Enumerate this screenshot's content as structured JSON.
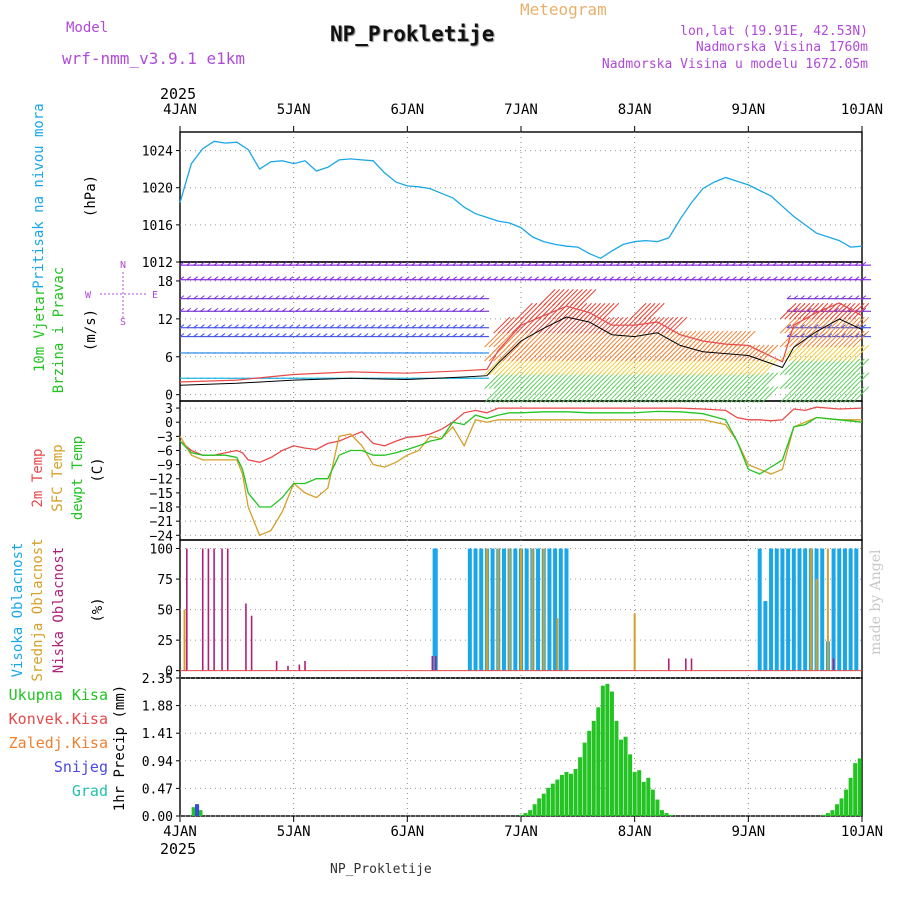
{
  "header": {
    "title": "NP_Prokletije",
    "subtitle": "Meteogram",
    "model_label": "Model",
    "model_name": "wrf-nmm_v3.9.1  e1km",
    "location": "lon,lat (19.91E, 42.53N)",
    "altitude": "Nadmorska Visina 1760m",
    "model_altitude": "Nadmorska Visina u modelu 1672.05m",
    "footer": "NP_Prokletije",
    "watermark": "made by Angel"
  },
  "colors": {
    "pressure": "#1aa7e8",
    "temp2m": "#e84a4a",
    "sfc_temp": "#d4a028",
    "dewpoint": "#22c322",
    "cloud_high": "#1aa7e8",
    "cloud_mid": "#d4a028",
    "cloud_low": "#b0207a",
    "precip_total": "#22c322",
    "purple_text": "#b04ad8",
    "wind_speed": "#000000",
    "gust": "#e84a4a"
  },
  "axis": {
    "year": "2025",
    "days": [
      "4JAN",
      "5JAN",
      "6JAN",
      "7JAN",
      "8JAN",
      "9JAN",
      "10JAN"
    ]
  },
  "chart_data": [
    {
      "type": "line",
      "panel": "pressure",
      "ylabel": "Pritisak na nivou mora",
      "unit": "(hPa)",
      "ylim": [
        1012,
        1026
      ],
      "yticks": [
        1012,
        1016,
        1020,
        1024
      ],
      "x": [
        0,
        0.1,
        0.2,
        0.3,
        0.4,
        0.5,
        0.6,
        0.7,
        0.8,
        0.9,
        1.0,
        1.1,
        1.2,
        1.3,
        1.4,
        1.5,
        1.6,
        1.7,
        1.8,
        1.9,
        2.0,
        2.1,
        2.2,
        2.3,
        2.4,
        2.5,
        2.6,
        2.7,
        2.8,
        2.9,
        3.0,
        3.1,
        3.2,
        3.3,
        3.4,
        3.5,
        3.6,
        3.7,
        3.8,
        3.9,
        4.0,
        4.1,
        4.2,
        4.3,
        4.4,
        4.5,
        4.6,
        4.7,
        4.8,
        4.9,
        5.0,
        5.1,
        5.2,
        5.3,
        5.4,
        5.5,
        5.6,
        5.7,
        5.8,
        5.9,
        6.0
      ],
      "series": [
        {
          "name": "pressure",
          "values": [
            1018.4,
            1022.6,
            1024.2,
            1025.0,
            1024.8,
            1024.9,
            1024.1,
            1022.0,
            1022.8,
            1022.9,
            1022.6,
            1022.9,
            1021.8,
            1022.2,
            1023.0,
            1023.1,
            1023.0,
            1022.9,
            1021.6,
            1020.6,
            1020.2,
            1020.1,
            1019.9,
            1019.4,
            1018.9,
            1017.9,
            1017.2,
            1016.8,
            1016.4,
            1016.2,
            1015.7,
            1014.7,
            1014.2,
            1013.9,
            1013.7,
            1013.6,
            1012.9,
            1012.4,
            1013.2,
            1013.9,
            1014.2,
            1014.3,
            1014.2,
            1014.6,
            1016.6,
            1018.4,
            1019.9,
            1020.6,
            1021.1,
            1020.7,
            1020.3,
            1019.7,
            1019.1,
            1018.0,
            1016.9,
            1016.0,
            1015.1,
            1014.7,
            1014.3,
            1013.6,
            1013.7
          ]
        }
      ]
    },
    {
      "type": "line",
      "panel": "wind",
      "ylabel": "10m Vjetar Brzina i Pravac",
      "unit": "(m/s)",
      "compass": [
        "N",
        "E",
        "S",
        "W"
      ],
      "ylim": [
        0,
        21
      ],
      "yticks": [
        0,
        6,
        12,
        18
      ],
      "x": [
        0,
        0.5,
        1.0,
        1.5,
        2.0,
        2.5,
        2.7,
        2.8,
        3.0,
        3.2,
        3.4,
        3.6,
        3.8,
        4.0,
        4.2,
        4.4,
        4.6,
        4.8,
        5.0,
        5.3,
        5.4,
        5.6,
        5.8,
        6.0
      ],
      "series": [
        {
          "name": "speed",
          "values": [
            1.5,
            1.8,
            2.3,
            2.6,
            2.4,
            2.8,
            3.0,
            5.0,
            8.5,
            10.5,
            12.3,
            11.5,
            9.5,
            9.2,
            9.8,
            7.8,
            6.8,
            6.5,
            6.2,
            4.3,
            7.5,
            10.0,
            12.0,
            10.3
          ]
        },
        {
          "name": "gust",
          "values": [
            2.0,
            2.3,
            3.2,
            3.6,
            3.4,
            3.8,
            4.0,
            7.0,
            11.0,
            12.5,
            14.0,
            13.0,
            11.0,
            11.0,
            11.5,
            9.5,
            8.5,
            8.0,
            7.8,
            5.2,
            11.0,
            13.0,
            14.5,
            12.5
          ]
        }
      ]
    },
    {
      "type": "line",
      "panel": "temperature",
      "ylabels": [
        "2m Temp",
        "SFC Temp",
        "dewpt Temp"
      ],
      "unit": "(C)",
      "ylim": [
        -25,
        4
      ],
      "yticks": [
        3,
        0,
        -3,
        -6,
        -9,
        -12,
        -15,
        -18,
        -21,
        -24
      ],
      "x": [
        0,
        0.1,
        0.2,
        0.3,
        0.4,
        0.5,
        0.55,
        0.6,
        0.7,
        0.8,
        0.9,
        1.0,
        1.1,
        1.2,
        1.3,
        1.4,
        1.5,
        1.6,
        1.7,
        1.8,
        1.9,
        2.0,
        2.1,
        2.2,
        2.3,
        2.4,
        2.5,
        2.6,
        2.7,
        2.8,
        2.9,
        3.0,
        3.2,
        3.4,
        3.6,
        3.8,
        4.0,
        4.2,
        4.4,
        4.6,
        4.8,
        4.9,
        5.0,
        5.1,
        5.2,
        5.3,
        5.4,
        5.5,
        5.6,
        5.8,
        6.0
      ],
      "series": [
        {
          "name": "2m Temp",
          "values": [
            -4,
            -6,
            -7,
            -7,
            -6.5,
            -6,
            -6.5,
            -8,
            -8.5,
            -7.5,
            -6,
            -5,
            -5.5,
            -5.8,
            -4.5,
            -4,
            -3,
            -2,
            -4.5,
            -5,
            -4,
            -3.2,
            -3,
            -2.5,
            -1.5,
            0,
            2,
            2.5,
            2,
            3,
            3,
            3,
            3,
            3,
            3,
            3,
            3,
            3,
            3,
            2.8,
            2.5,
            1,
            0.5,
            0.5,
            0.3,
            0.5,
            2.8,
            2.5,
            3.2,
            2.8,
            3
          ]
        },
        {
          "name": "SFC Temp",
          "values": [
            -3,
            -7,
            -8,
            -8,
            -8,
            -8,
            -11,
            -18,
            -24,
            -23,
            -19,
            -13,
            -15,
            -16,
            -14,
            -3,
            -2.5,
            -5,
            -9,
            -9.5,
            -8.5,
            -7,
            -6,
            -3,
            -3.5,
            -1,
            -5,
            0.5,
            0,
            0.5,
            0.5,
            0.5,
            0.5,
            0.5,
            0.5,
            0.5,
            0.5,
            0.5,
            0.5,
            0.5,
            -0.5,
            -4,
            -9,
            -10,
            -11,
            -10,
            -1,
            0,
            1,
            0.5,
            0.5
          ]
        },
        {
          "name": "dewpt Temp",
          "values": [
            -4,
            -6.5,
            -7,
            -7,
            -7,
            -7.5,
            -10,
            -15,
            -18,
            -18,
            -16,
            -13,
            -13,
            -12,
            -12,
            -7,
            -6,
            -6,
            -7,
            -7,
            -6.5,
            -5.8,
            -5,
            -4,
            -3.5,
            0,
            -0.5,
            1.5,
            0.8,
            1.5,
            2,
            2,
            2.2,
            2.2,
            2,
            2,
            2,
            2.3,
            2.2,
            1.8,
            0.5,
            -4,
            -10,
            -11,
            -9.5,
            -8,
            -1,
            -0.5,
            1,
            0.5,
            0
          ]
        }
      ]
    },
    {
      "type": "bar",
      "panel": "clouds",
      "ylabels": [
        "Visoka Oblacnost",
        "Srednja Oblacnost",
        "Niska Oblacnost"
      ],
      "unit": "(%)",
      "ylim": [
        0,
        100
      ],
      "yticks": [
        0,
        25,
        50,
        75,
        100
      ],
      "series": [
        {
          "name": "Visoka Oblacnost",
          "x": [
            2.24,
            2.25,
            2.55,
            2.6,
            2.65,
            2.7,
            2.75,
            2.8,
            2.85,
            2.9,
            2.95,
            3.0,
            3.05,
            3.1,
            3.15,
            3.2,
            3.25,
            3.3,
            3.35,
            3.4,
            5.1,
            5.15,
            5.2,
            5.25,
            5.3,
            5.35,
            5.4,
            5.45,
            5.5,
            5.55,
            5.6,
            5.65,
            5.7,
            5.75,
            5.8,
            5.85,
            5.9,
            5.95
          ],
          "values": [
            100,
            100,
            100,
            100,
            100,
            100,
            100,
            100,
            100,
            100,
            100,
            100,
            100,
            100,
            100,
            100,
            100,
            100,
            100,
            100,
            100,
            57,
            100,
            100,
            100,
            100,
            100,
            100,
            100,
            100,
            100,
            100,
            24,
            100,
            100,
            100,
            100,
            100
          ]
        },
        {
          "name": "Srednja Oblacnost",
          "x": [
            0.04,
            2.7,
            2.8,
            2.9,
            3.0,
            3.1,
            3.2,
            3.32,
            4.0,
            5.55,
            5.6,
            5.7
          ],
          "values": [
            50,
            100,
            100,
            100,
            100,
            100,
            100,
            43,
            47,
            100,
            75,
            100
          ]
        },
        {
          "name": "Niska Oblacnost",
          "x": [
            0.06,
            0.2,
            0.25,
            0.3,
            0.37,
            0.42,
            0.58,
            0.63,
            0.85,
            0.95,
            1.05,
            1.1,
            2.22,
            2.25,
            4.3,
            4.45,
            4.5,
            5.75
          ],
          "values": [
            100,
            100,
            100,
            100,
            100,
            100,
            55,
            45,
            8,
            4,
            5,
            8,
            12,
            12,
            10,
            10,
            10,
            10
          ]
        }
      ]
    },
    {
      "type": "bar",
      "panel": "precip",
      "labels": [
        "Ukupna Kisa",
        "Konvek.Kisa",
        "Zaledj.Kisa",
        "Snijeg",
        "Grad"
      ],
      "ylabel": "1hr Precip (mm)",
      "ylim": [
        0,
        2.35
      ],
      "yticks": [
        0,
        0.47,
        0.94,
        1.41,
        1.88,
        2.35
      ],
      "series": [
        {
          "name": "Ukupna Kisa",
          "x": [
            0.12,
            0.15,
            0.18,
            3.0,
            3.04,
            3.08,
            3.12,
            3.16,
            3.2,
            3.24,
            3.28,
            3.32,
            3.36,
            3.4,
            3.44,
            3.48,
            3.52,
            3.56,
            3.6,
            3.64,
            3.68,
            3.72,
            3.76,
            3.8,
            3.84,
            3.88,
            3.92,
            3.96,
            4.0,
            4.04,
            4.08,
            4.12,
            4.16,
            4.2,
            4.24,
            4.28,
            4.32,
            5.66,
            5.7,
            5.74,
            5.78,
            5.82,
            5.86,
            5.9,
            5.94,
            5.98
          ],
          "values": [
            0.15,
            0.2,
            0.1,
            0.02,
            0.05,
            0.1,
            0.2,
            0.3,
            0.38,
            0.48,
            0.55,
            0.62,
            0.7,
            0.75,
            0.72,
            0.8,
            1.0,
            1.25,
            1.45,
            1.62,
            1.85,
            2.22,
            2.25,
            2.12,
            1.62,
            1.3,
            1.35,
            1.05,
            0.75,
            0.78,
            0.58,
            0.65,
            0.45,
            0.28,
            0.1,
            0.05,
            0.02,
            0.02,
            0.05,
            0.1,
            0.2,
            0.3,
            0.45,
            0.65,
            0.9,
            0.98
          ]
        },
        {
          "name": "Snijeg",
          "x": [
            0.15
          ],
          "values": [
            0.2
          ]
        }
      ]
    }
  ]
}
